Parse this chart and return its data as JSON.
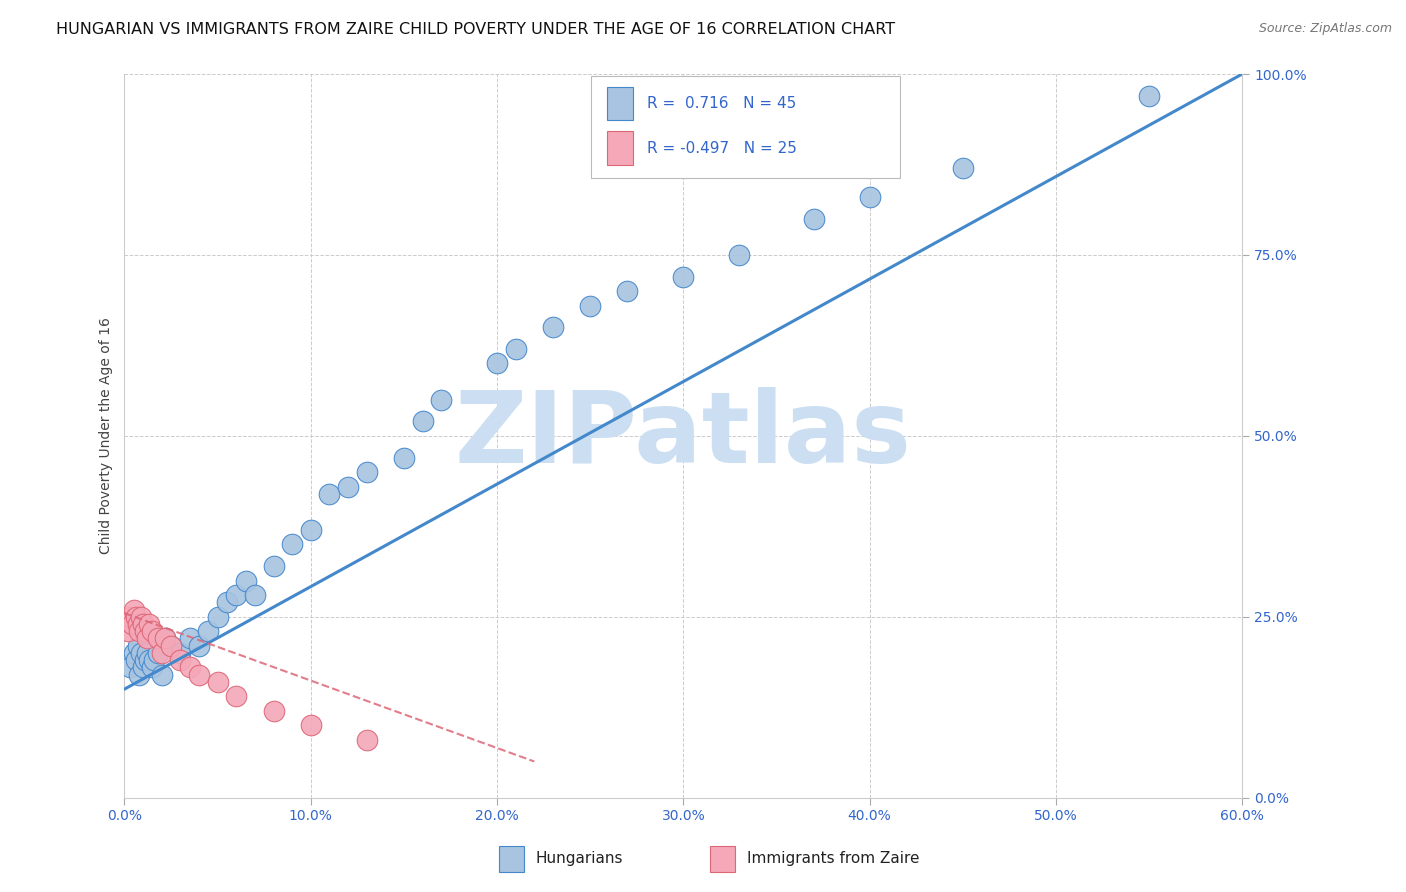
{
  "title": "HUNGARIAN VS IMMIGRANTS FROM ZAIRE CHILD POVERTY UNDER THE AGE OF 16 CORRELATION CHART",
  "source": "Source: ZipAtlas.com",
  "ylabel": "Child Poverty Under the Age of 16",
  "xlabel_ticks": [
    "0.0%",
    "10.0%",
    "20.0%",
    "30.0%",
    "40.0%",
    "50.0%",
    "60.0%"
  ],
  "xlabel_vals": [
    0,
    0.1,
    0.2,
    0.3,
    0.4,
    0.5,
    0.6
  ],
  "ylabel_ticks": [
    "100.0%",
    "75.0%",
    "50.0%",
    "25.0%",
    "0.0%"
  ],
  "ylabel_vals": [
    1.0,
    0.75,
    0.5,
    0.25,
    0.0
  ],
  "xlim": [
    0,
    0.6
  ],
  "ylim": [
    0,
    1.0
  ],
  "R_hungarian": 0.716,
  "N_hungarian": 45,
  "R_zaire": -0.497,
  "N_zaire": 25,
  "color_hungarian": "#a8c4e0",
  "color_zaire": "#f4a8b8",
  "line_color_hungarian": "#4488cc",
  "line_color_zaire": "#dd6677",
  "watermark": "ZIPatlas",
  "hu_x": [
    0.003,
    0.005,
    0.006,
    0.007,
    0.008,
    0.009,
    0.01,
    0.011,
    0.012,
    0.013,
    0.015,
    0.016,
    0.018,
    0.02,
    0.022,
    0.025,
    0.03,
    0.035,
    0.04,
    0.045,
    0.05,
    0.055,
    0.06,
    0.065,
    0.07,
    0.08,
    0.09,
    0.1,
    0.11,
    0.12,
    0.13,
    0.15,
    0.16,
    0.17,
    0.2,
    0.21,
    0.23,
    0.25,
    0.27,
    0.3,
    0.33,
    0.37,
    0.4,
    0.45,
    0.55
  ],
  "hu_y": [
    0.18,
    0.2,
    0.19,
    0.21,
    0.17,
    0.2,
    0.18,
    0.19,
    0.2,
    0.19,
    0.18,
    0.19,
    0.2,
    0.17,
    0.22,
    0.21,
    0.2,
    0.22,
    0.21,
    0.23,
    0.25,
    0.27,
    0.28,
    0.3,
    0.28,
    0.32,
    0.35,
    0.37,
    0.42,
    0.43,
    0.45,
    0.47,
    0.52,
    0.55,
    0.6,
    0.62,
    0.65,
    0.68,
    0.7,
    0.72,
    0.75,
    0.8,
    0.83,
    0.87,
    0.97
  ],
  "za_x": [
    0.002,
    0.003,
    0.004,
    0.005,
    0.006,
    0.007,
    0.008,
    0.009,
    0.01,
    0.011,
    0.012,
    0.013,
    0.015,
    0.018,
    0.02,
    0.022,
    0.025,
    0.03,
    0.035,
    0.04,
    0.05,
    0.06,
    0.08,
    0.1,
    0.13
  ],
  "za_y": [
    0.23,
    0.25,
    0.24,
    0.26,
    0.25,
    0.24,
    0.23,
    0.25,
    0.24,
    0.23,
    0.22,
    0.24,
    0.23,
    0.22,
    0.2,
    0.22,
    0.21,
    0.19,
    0.18,
    0.17,
    0.16,
    0.14,
    0.12,
    0.1,
    0.08
  ],
  "background_color": "#ffffff",
  "grid_color": "#cccccc",
  "title_fontsize": 11.5,
  "axis_label_fontsize": 10,
  "tick_fontsize": 10,
  "legend_fontsize": 11,
  "watermark_color": "#ccdff2",
  "watermark_fontsize": 72,
  "source_fontsize": 9,
  "hu_line_x0": 0.0,
  "hu_line_y0": 0.15,
  "hu_line_x1": 0.6,
  "hu_line_y1": 1.0,
  "za_line_x0": 0.0,
  "za_line_y0": 0.255,
  "za_line_x1": 0.22,
  "za_line_y1": 0.05
}
